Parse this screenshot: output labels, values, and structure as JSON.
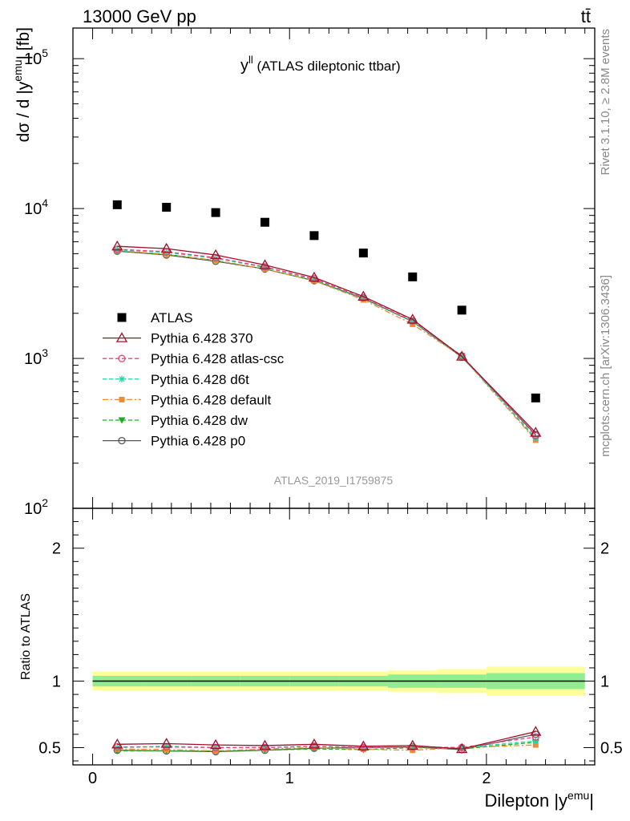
{
  "header": {
    "energy": "13000 GeV pp",
    "process": "tt̄"
  },
  "side_labels": {
    "rivet": "Rivet 3.1.10, ≥ 2.8M events",
    "mcplots": "mcplots.cern.ch [arXiv:1306.3436]"
  },
  "chart_data": [
    {
      "type": "line",
      "title": "y^ll (ATLAS dileptonic ttbar)",
      "title_main": "y",
      "title_sup": "ll",
      "title_rest": " (ATLAS dileptonic ttbar)",
      "analysis_tag": "ATLAS_2019_I1759875",
      "ylabel": "dσ / d |y^emu| [fb]",
      "ylabel_main": "dσ / d |y",
      "ylabel_sup": "emu",
      "ylabel_rest": "| [fb]",
      "yscale": "log",
      "ylim": [
        100,
        160000
      ],
      "yticks": [
        {
          "v": 100,
          "base": "10",
          "exp": "2"
        },
        {
          "v": 1000,
          "base": "10",
          "exp": "3"
        },
        {
          "v": 10000,
          "base": "10",
          "exp": "4"
        },
        {
          "v": 100000,
          "base": "10",
          "exp": "5"
        }
      ],
      "xlim": [
        -0.1,
        2.55
      ],
      "x": [
        0.125,
        0.375,
        0.625,
        0.875,
        1.125,
        1.375,
        1.625,
        1.875,
        2.25
      ],
      "legend_position": "middle-left",
      "series": [
        {
          "name": "ATLAS",
          "color": "#000000",
          "marker": "square",
          "dash": "none",
          "values": [
            10600,
            10200,
            9400,
            8100,
            6600,
            5050,
            3500,
            2100,
            545
          ]
        },
        {
          "name": "Pythia 6.428 370",
          "color": "#a0102a",
          "marker": "triangle-open",
          "dash": "solid",
          "values": [
            5600,
            5400,
            4900,
            4200,
            3470,
            2590,
            1820,
            1030,
            320
          ]
        },
        {
          "name": "Pythia 6.428 atlas-csc",
          "color": "#e8427c",
          "marker": "circle-open",
          "dash": "dashed",
          "values": [
            5350,
            5150,
            4700,
            4080,
            3400,
            2540,
            1780,
            1040,
            305
          ]
        },
        {
          "name": "Pythia 6.428 d6t",
          "color": "#2ad4a8",
          "marker": "star",
          "dash": "dashed",
          "values": [
            5300,
            5100,
            4650,
            4050,
            3370,
            2520,
            1760,
            1030,
            295
          ]
        },
        {
          "name": "Pythia 6.428 default",
          "color": "#f28b30",
          "marker": "square-filled",
          "dash": "dashdot",
          "values": [
            5250,
            4950,
            4500,
            3950,
            3300,
            2460,
            1690,
            1030,
            285
          ]
        },
        {
          "name": "Pythia 6.428 dw",
          "color": "#22aa22",
          "marker": "triangle-down",
          "dash": "dashed",
          "values": [
            5200,
            4950,
            4500,
            3950,
            3320,
            2500,
            1760,
            1040,
            290
          ]
        },
        {
          "name": "Pythia 6.428 p0",
          "color": "#555555",
          "marker": "circle-open",
          "dash": "solid",
          "values": [
            5200,
            4900,
            4450,
            3950,
            3300,
            2520,
            1760,
            1020,
            310
          ]
        }
      ]
    },
    {
      "type": "line",
      "ylabel": "Ratio to ATLAS",
      "xlabel": "Dilepton |y^emu|",
      "xlabel_main": "Dilepton |y",
      "xlabel_sup": "emu",
      "xlabel_rest": "|",
      "ylim": [
        0.37,
        2.3
      ],
      "yticks": [
        0.5,
        1,
        2
      ],
      "ytick_labels": [
        "0.5",
        "1",
        "2"
      ],
      "xlim": [
        -0.1,
        2.55
      ],
      "xticks": [
        0,
        1,
        2
      ],
      "xtick_labels": [
        "0",
        "1",
        "2"
      ],
      "x": [
        0.125,
        0.375,
        0.625,
        0.875,
        1.125,
        1.375,
        1.625,
        1.875,
        2.25
      ],
      "bands": {
        "edges": [
          0,
          0.25,
          0.5,
          0.75,
          1.0,
          1.25,
          1.5,
          1.75,
          2.0,
          2.5
        ],
        "inner": [
          0.04,
          0.04,
          0.04,
          0.04,
          0.04,
          0.04,
          0.05,
          0.05,
          0.06
        ],
        "outer": [
          0.07,
          0.07,
          0.07,
          0.07,
          0.07,
          0.07,
          0.08,
          0.09,
          0.11
        ],
        "inner_color": "#90ee90",
        "outer_color": "#ffff99"
      },
      "series": [
        {
          "name": "Pythia 6.428 370",
          "values": [
            0.525,
            0.53,
            0.52,
            0.515,
            0.525,
            0.51,
            0.515,
            0.49,
            0.62
          ]
        },
        {
          "name": "Pythia 6.428 atlas-csc",
          "values": [
            0.505,
            0.505,
            0.5,
            0.5,
            0.51,
            0.5,
            0.505,
            0.5,
            0.58
          ]
        },
        {
          "name": "Pythia 6.428 d6t",
          "values": [
            0.5,
            0.51,
            0.5,
            0.5,
            0.51,
            0.5,
            0.505,
            0.5,
            0.55
          ]
        },
        {
          "name": "Pythia 6.428 default",
          "values": [
            0.49,
            0.485,
            0.475,
            0.49,
            0.5,
            0.487,
            0.48,
            0.5,
            0.52
          ]
        },
        {
          "name": "Pythia 6.428 dw",
          "values": [
            0.475,
            0.475,
            0.475,
            0.48,
            0.49,
            0.485,
            0.5,
            0.49,
            0.54
          ]
        },
        {
          "name": "Pythia 6.428 p0",
          "values": [
            0.48,
            0.475,
            0.47,
            0.48,
            0.495,
            0.5,
            0.505,
            0.485,
            0.6
          ]
        }
      ]
    }
  ]
}
